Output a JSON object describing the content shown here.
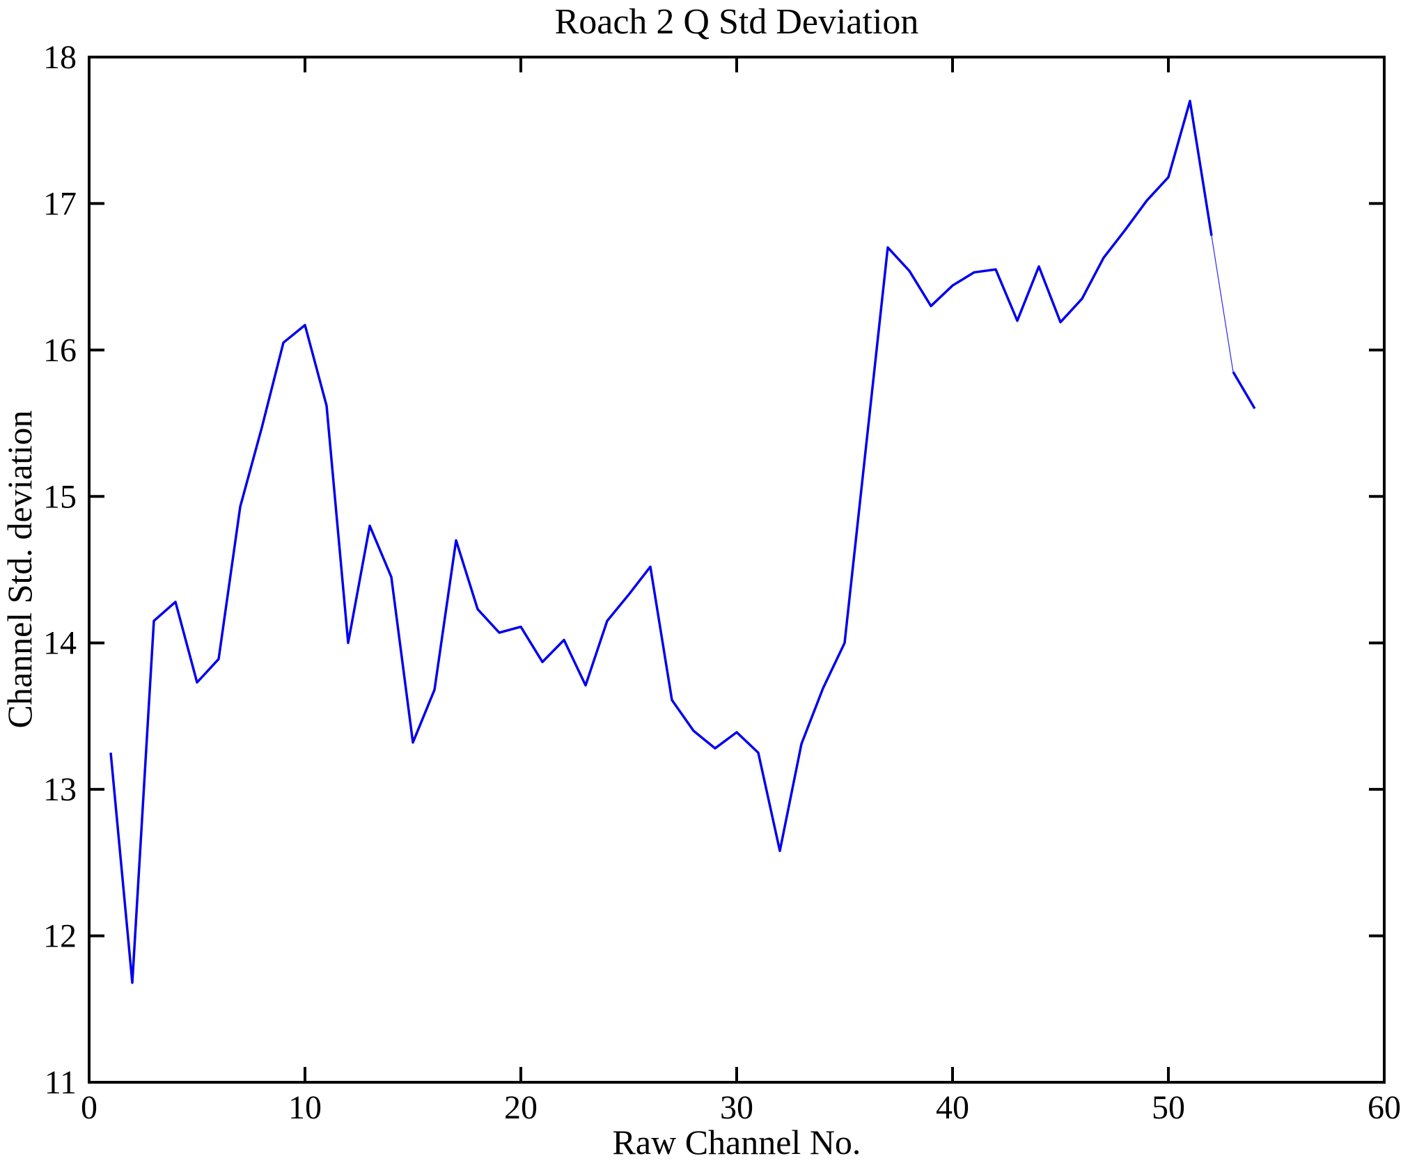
{
  "page": {
    "title": "Roach 2 Q Std Deviation"
  },
  "chart_data": {
    "type": "line",
    "title": "Roach 2 Q Std Deviation",
    "xlabel": "Raw Channel No.",
    "ylabel": "Channel Std. deviation",
    "xlim": [
      0,
      60
    ],
    "ylim": [
      11,
      18
    ],
    "xticks": [
      0,
      10,
      20,
      30,
      40,
      50,
      60
    ],
    "yticks": [
      11,
      12,
      13,
      14,
      15,
      16,
      17,
      18
    ],
    "grid": false,
    "legend": "none",
    "line_color": "#0000EE",
    "axis_color": "#000000",
    "background_color": "#ffffff",
    "series": [
      {
        "name": "Channel Std deviation",
        "x": [
          1,
          2,
          3,
          4,
          5,
          6,
          7,
          8,
          9,
          10,
          11,
          12,
          13,
          14,
          15,
          16,
          17,
          18,
          19,
          20,
          21,
          22,
          23,
          24,
          25,
          26,
          27,
          28,
          29,
          30,
          31,
          32,
          33,
          34,
          35,
          36,
          37,
          38,
          39,
          40,
          41,
          42,
          43,
          44,
          45,
          46,
          47,
          48,
          49,
          50,
          51,
          52,
          53,
          54
        ],
        "values": [
          13.25,
          11.68,
          14.15,
          14.28,
          13.73,
          13.89,
          14.93,
          15.47,
          16.05,
          16.17,
          15.62,
          14.0,
          14.8,
          14.45,
          13.32,
          13.68,
          14.7,
          14.23,
          14.07,
          14.11,
          13.87,
          14.02,
          13.71,
          14.15,
          14.33,
          14.52,
          13.61,
          13.4,
          13.28,
          13.39,
          13.25,
          12.58,
          13.31,
          13.69,
          14.0,
          15.35,
          16.7,
          16.54,
          16.3,
          16.44,
          16.53,
          16.55,
          16.2,
          16.57,
          16.19,
          16.35,
          16.63,
          16.82,
          17.02,
          17.18,
          17.7,
          16.78,
          15.85,
          15.6
        ]
      }
    ],
    "thin_faint_segment_between_channels": [
      52,
      53
    ]
  }
}
